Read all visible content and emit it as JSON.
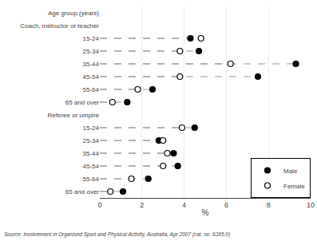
{
  "chart_data": {
    "type": "dot",
    "orientation": "horizontal",
    "xlabel": "%",
    "xlim": [
      0,
      10
    ],
    "xticks": [
      0,
      2,
      4,
      6,
      8,
      10
    ],
    "grid": true,
    "legend": "lower right",
    "color": "#999999",
    "line_style": "dashed",
    "categories": [
      "Age group (years)",
      "Coach, instructor or teacher",
      "15-24",
      "25-34",
      "35-44",
      "45-54",
      "55-64",
      "65 and over",
      "Referee or umpire",
      "15-24",
      "25-34",
      "35-44",
      "45-54",
      "55-64",
      "65 and over"
    ],
    "series": [
      {
        "name": "Male",
        "color": "#000000",
        "marker": "filled",
        "values": [
          null,
          null,
          4.3,
          4.7,
          9.3,
          7.5,
          2.5,
          1.3,
          null,
          4.5,
          2.8,
          3.5,
          3.7,
          2.3,
          1.1
        ]
      },
      {
        "name": "Female",
        "color": "#000000",
        "marker": "open",
        "values": [
          null,
          null,
          4.8,
          3.8,
          6.2,
          3.8,
          1.8,
          0.6,
          null,
          3.9,
          3.0,
          3.2,
          3.0,
          1.5,
          0.5
        ]
      }
    ],
    "annotations": [
      {
        "text": "Source: Involvement in Organised Sport and Physical Activity, Australia, Apr 2007 (cat. no. 6285.0)"
      }
    ]
  }
}
